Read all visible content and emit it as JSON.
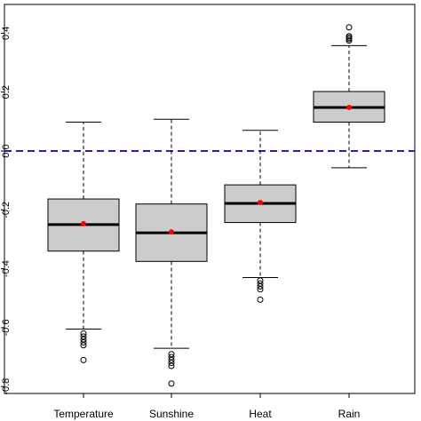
{
  "chart_data": {
    "type": "boxplot",
    "categories": [
      "Temperature",
      "Sunshine",
      "Heat",
      "Rain"
    ],
    "y_ticks": [
      -0.8,
      -0.6,
      -0.4,
      -0.2,
      0.0,
      0.2,
      0.4
    ],
    "y_tick_labels": [
      "-0.8",
      "-0.6",
      "-0.4",
      "-0.2",
      "0.0",
      "0.2",
      "0.4"
    ],
    "ylim": [
      -0.81,
      0.43
    ],
    "reference_line": {
      "y": 0.0,
      "color": "#2222bb",
      "style": "dashed"
    },
    "box_color": "#cccccc",
    "mean_color": "#ff0000",
    "boxes": [
      {
        "name": "Temperature",
        "whisker_low": -0.605,
        "q1": -0.34,
        "median": -0.25,
        "q3": -0.163,
        "whisker_high": 0.098,
        "mean": -0.247,
        "outliers": [
          -0.62,
          -0.63,
          -0.64,
          -0.65,
          -0.66,
          -0.71
        ]
      },
      {
        "name": "Sunshine",
        "whisker_low": -0.67,
        "q1": -0.375,
        "median": -0.278,
        "q3": -0.18,
        "whisker_high": 0.108,
        "mean": -0.275,
        "outliers": [
          -0.69,
          -0.7,
          -0.71,
          -0.72,
          -0.73,
          -0.79
        ]
      },
      {
        "name": "Heat",
        "whisker_low": -0.43,
        "q1": -0.243,
        "median": -0.178,
        "q3": -0.115,
        "whisker_high": 0.07,
        "mean": -0.175,
        "outliers": [
          -0.44,
          -0.45,
          -0.46,
          -0.47,
          -0.505
        ]
      },
      {
        "name": "Rain",
        "whisker_low": -0.057,
        "q1": 0.098,
        "median": 0.148,
        "q3": 0.202,
        "whisker_high": 0.358,
        "mean": 0.148,
        "outliers": [
          0.375,
          0.38,
          0.385,
          0.39,
          0.42
        ]
      }
    ]
  }
}
